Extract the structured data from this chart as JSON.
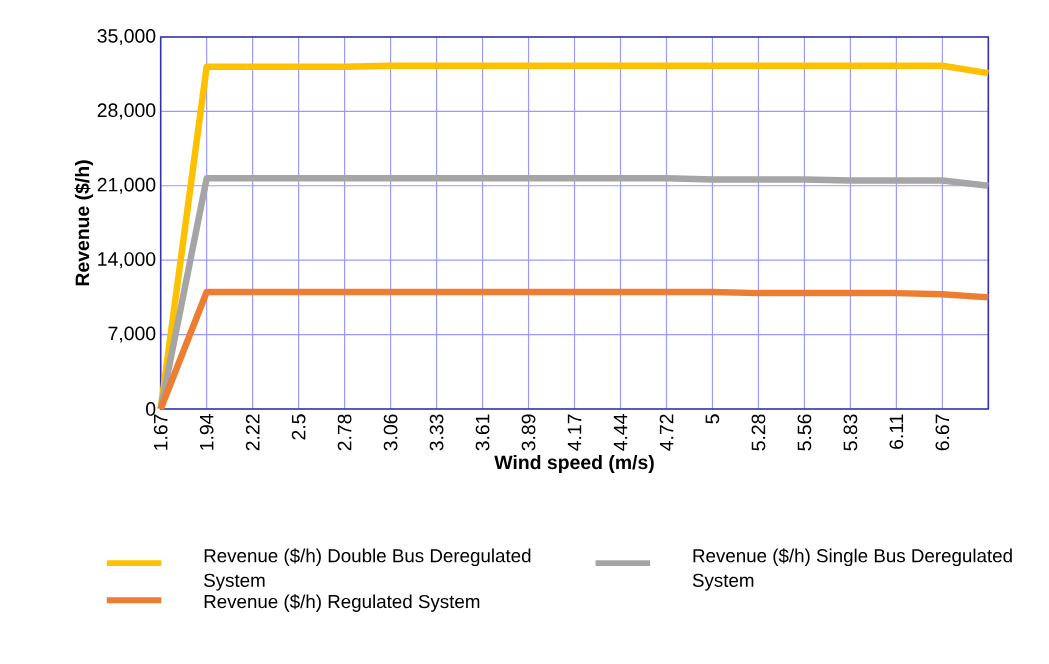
{
  "chart_data": {
    "type": "line",
    "xlabel": "Wind speed (m/s)",
    "ylabel": "Revenue ($/h)",
    "categories": [
      "1.67",
      "1.94",
      "2.22",
      "2.5",
      "2.78",
      "3.06",
      "3.33",
      "3.61",
      "3.89",
      "4.17",
      "4.44",
      "4.72",
      "5",
      "5.28",
      "5.56",
      "5.83",
      "6.11",
      "6.67",
      null
    ],
    "series": [
      {
        "name": "Revenue ($/h) Double Bus Deregulated System",
        "color": "#ffc000",
        "values": [
          0,
          32200,
          32200,
          32200,
          32200,
          32300,
          32300,
          32300,
          32300,
          32300,
          32300,
          32300,
          32300,
          32300,
          32300,
          32300,
          32300,
          32300,
          31600
        ]
      },
      {
        "name": "Revenue ($/h) Single Bus Deregulated System",
        "color": "#a5a5a5",
        "values": [
          0,
          21700,
          21700,
          21700,
          21700,
          21700,
          21700,
          21700,
          21700,
          21700,
          21700,
          21700,
          21600,
          21600,
          21600,
          21500,
          21500,
          21500,
          21000
        ]
      },
      {
        "name": "Revenue ($/h) Regulated System",
        "color": "#ed7d31",
        "values": [
          0,
          11000,
          11000,
          11000,
          11000,
          11000,
          11000,
          11000,
          11000,
          11000,
          11000,
          11000,
          11000,
          10900,
          10900,
          10900,
          10900,
          10800,
          10500
        ]
      }
    ],
    "ylim": [
      0,
      35000
    ],
    "yticks": [
      {
        "value": 0,
        "label": "0"
      },
      {
        "value": 7000,
        "label": "7,000"
      },
      {
        "value": 14000,
        "label": "14,000"
      },
      {
        "value": 21000,
        "label": "21,000"
      },
      {
        "value": 28000,
        "label": "28,000"
      },
      {
        "value": 35000,
        "label": "35,000"
      }
    ],
    "grid": true,
    "legend": "bottom",
    "marker": "none",
    "line_style": "solid"
  }
}
